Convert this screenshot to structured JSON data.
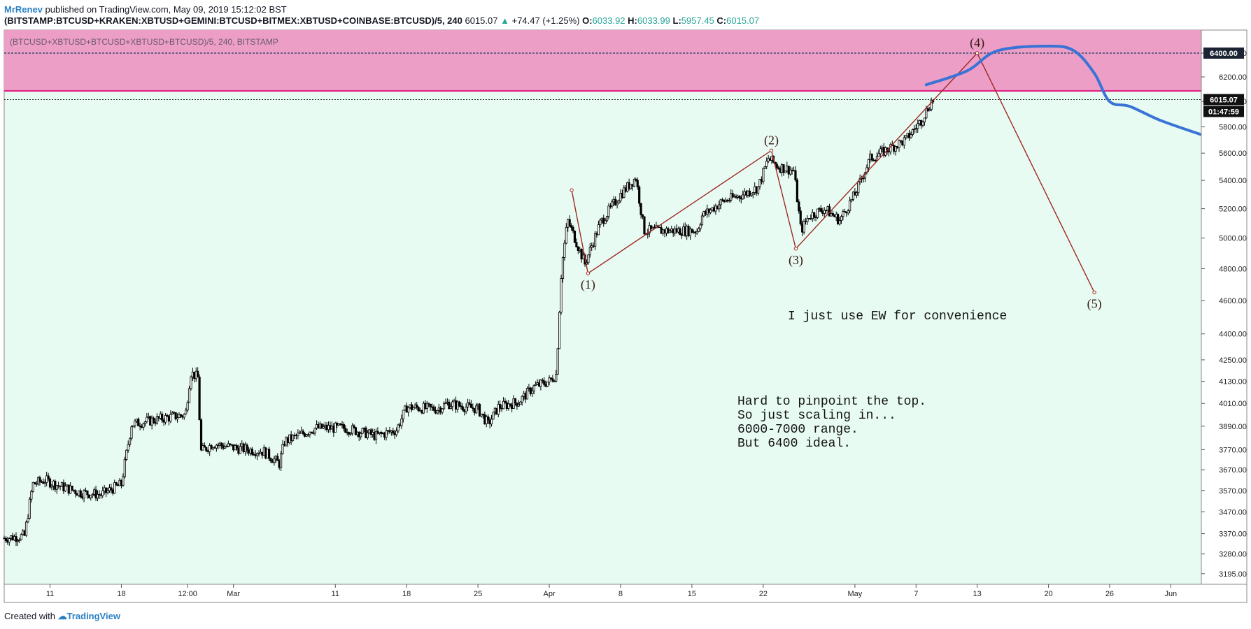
{
  "header": {
    "author": "MrRenev",
    "published_text": "published on TradingView.com, May 09, 2019 15:12:02 BST",
    "symbol": "(BITSTAMP:BTCUSD+KRAKEN:XBTUSD+GEMINI:BTCUSD+BITMEX:XBTUSD+COINBASE:BTCUSD)/5, 240",
    "last_price": "6015.07",
    "change": "+74.47 (+1.25%)",
    "o_label": "O:",
    "o_value": "6033.92",
    "h_label": "H:",
    "h_value": "6033.99",
    "l_label": "L:",
    "l_value": "5957.45",
    "c_label": "C:",
    "c_value": "6015.07"
  },
  "footer": {
    "created_with": "Created with",
    "brand": "TradingView"
  },
  "colors": {
    "background": "#e8fbf3",
    "zone": "#ec9ec6",
    "resistance": "#e0157a",
    "wave": "#9c2a22",
    "projection": "#3a73d6",
    "candle": "#000000"
  },
  "chart_data": {
    "type": "candlestick",
    "legend_label": "(BTCUSD+XBTUSD+BTCUSD+XBTUSD+BTCUSD)/5, 240, BITSTAMP",
    "x_unit": "days from 2019-02-07",
    "x_ticks": [
      {
        "d": 4,
        "label": "11"
      },
      {
        "d": 11,
        "label": "18"
      },
      {
        "d": 17.5,
        "label": "12:00"
      },
      {
        "d": 22,
        "label": "Mar"
      },
      {
        "d": 32,
        "label": "11"
      },
      {
        "d": 39,
        "label": "18"
      },
      {
        "d": 46,
        "label": "25"
      },
      {
        "d": 53,
        "label": "Apr"
      },
      {
        "d": 60,
        "label": "8"
      },
      {
        "d": 67,
        "label": "15"
      },
      {
        "d": 74,
        "label": "22"
      },
      {
        "d": 83,
        "label": "May"
      },
      {
        "d": 89,
        "label": "7"
      },
      {
        "d": 95,
        "label": "13"
      },
      {
        "d": 102,
        "label": "20"
      },
      {
        "d": 108,
        "label": "26"
      },
      {
        "d": 114,
        "label": "Jun"
      }
    ],
    "y_ticks": [
      3195,
      3280,
      3370,
      3470,
      3570,
      3670,
      3770,
      3890,
      4010,
      4130,
      4250,
      4400,
      4600,
      4800,
      5000,
      5200,
      5400,
      5600,
      5800,
      6000,
      6200,
      6400
    ],
    "y_range": [
      3150,
      6600
    ],
    "y_scale": "log",
    "x_range": [
      -0.5,
      117
    ],
    "current_price": 6015.07,
    "current_price_label": "6015.07",
    "countdown_label": "01:47:59",
    "level_6400": 6400,
    "level_6400_label": "6400.00",
    "zone": {
      "low": 6085,
      "high": 6600
    },
    "resistance_level": 6085,
    "price_path": [
      [
        -0.5,
        3350
      ],
      [
        1.5,
        3360
      ],
      [
        2.3,
        3600
      ],
      [
        3.5,
        3620
      ],
      [
        5,
        3590
      ],
      [
        7,
        3560
      ],
      [
        9,
        3550
      ],
      [
        11,
        3600
      ],
      [
        12,
        3900
      ],
      [
        15,
        3930
      ],
      [
        17.3,
        3950
      ],
      [
        17.8,
        4180
      ],
      [
        18.5,
        4150
      ],
      [
        18.8,
        3760
      ],
      [
        20,
        3800
      ],
      [
        22,
        3780
      ],
      [
        25,
        3760
      ],
      [
        26.5,
        3700
      ],
      [
        27,
        3810
      ],
      [
        30,
        3880
      ],
      [
        33,
        3880
      ],
      [
        36,
        3840
      ],
      [
        38,
        3870
      ],
      [
        39,
        3990
      ],
      [
        42,
        3980
      ],
      [
        43,
        4010
      ],
      [
        46,
        3980
      ],
      [
        47,
        3900
      ],
      [
        48,
        3990
      ],
      [
        50,
        4020
      ],
      [
        51.5,
        4100
      ],
      [
        53,
        4130
      ],
      [
        53.7,
        4170
      ],
      [
        54.2,
        4800
      ],
      [
        54.8,
        5120
      ],
      [
        55.8,
        4950
      ],
      [
        56.5,
        4830
      ],
      [
        58,
        5100
      ],
      [
        60,
        5300
      ],
      [
        61.5,
        5420
      ],
      [
        62.3,
        5050
      ],
      [
        64,
        5050
      ],
      [
        66,
        5050
      ],
      [
        67.5,
        5050
      ],
      [
        68,
        5150
      ],
      [
        70,
        5250
      ],
      [
        72,
        5300
      ],
      [
        73.5,
        5350
      ],
      [
        74.5,
        5560
      ],
      [
        75.5,
        5500
      ],
      [
        77,
        5470
      ],
      [
        77.7,
        5050
      ],
      [
        78.5,
        5150
      ],
      [
        80,
        5200
      ],
      [
        81.5,
        5120
      ],
      [
        83,
        5300
      ],
      [
        84.5,
        5560
      ],
      [
        86,
        5620
      ],
      [
        88,
        5700
      ],
      [
        89.5,
        5850
      ],
      [
        90.5,
        6000
      ],
      [
        90.8,
        6015.07
      ]
    ],
    "wave_path": [
      [
        55.2,
        5330
      ],
      [
        56.8,
        4770
      ],
      [
        74.8,
        5620
      ],
      [
        77.2,
        4930
      ],
      [
        95,
        6400
      ],
      [
        106.5,
        4650
      ]
    ],
    "wave_labels": [
      {
        "label": "(1)",
        "d": 56.8,
        "v": 4770,
        "pos": "below"
      },
      {
        "label": "(2)",
        "d": 74.8,
        "v": 5620,
        "pos": "above"
      },
      {
        "label": "(3)",
        "d": 77.2,
        "v": 4930,
        "pos": "below"
      },
      {
        "label": "(4)",
        "d": 95,
        "v": 6400,
        "pos": "above"
      },
      {
        "label": "(5)",
        "d": 106.5,
        "v": 4650,
        "pos": "below"
      }
    ],
    "projection_path": [
      [
        90,
        6135
      ],
      [
        94,
        6250
      ],
      [
        97,
        6420
      ],
      [
        102,
        6460
      ],
      [
        104.5,
        6420
      ],
      [
        106.5,
        6230
      ],
      [
        108,
        6000
      ],
      [
        110,
        5960
      ],
      [
        113,
        5850
      ],
      [
        117,
        5740
      ]
    ],
    "annotations": {
      "ew": "I just use EW for convenience",
      "note_lines": [
        "Hard to pinpoint the top.",
        "So just scaling in...",
        "6000-7000 range.",
        "But 6400 ideal."
      ]
    }
  }
}
